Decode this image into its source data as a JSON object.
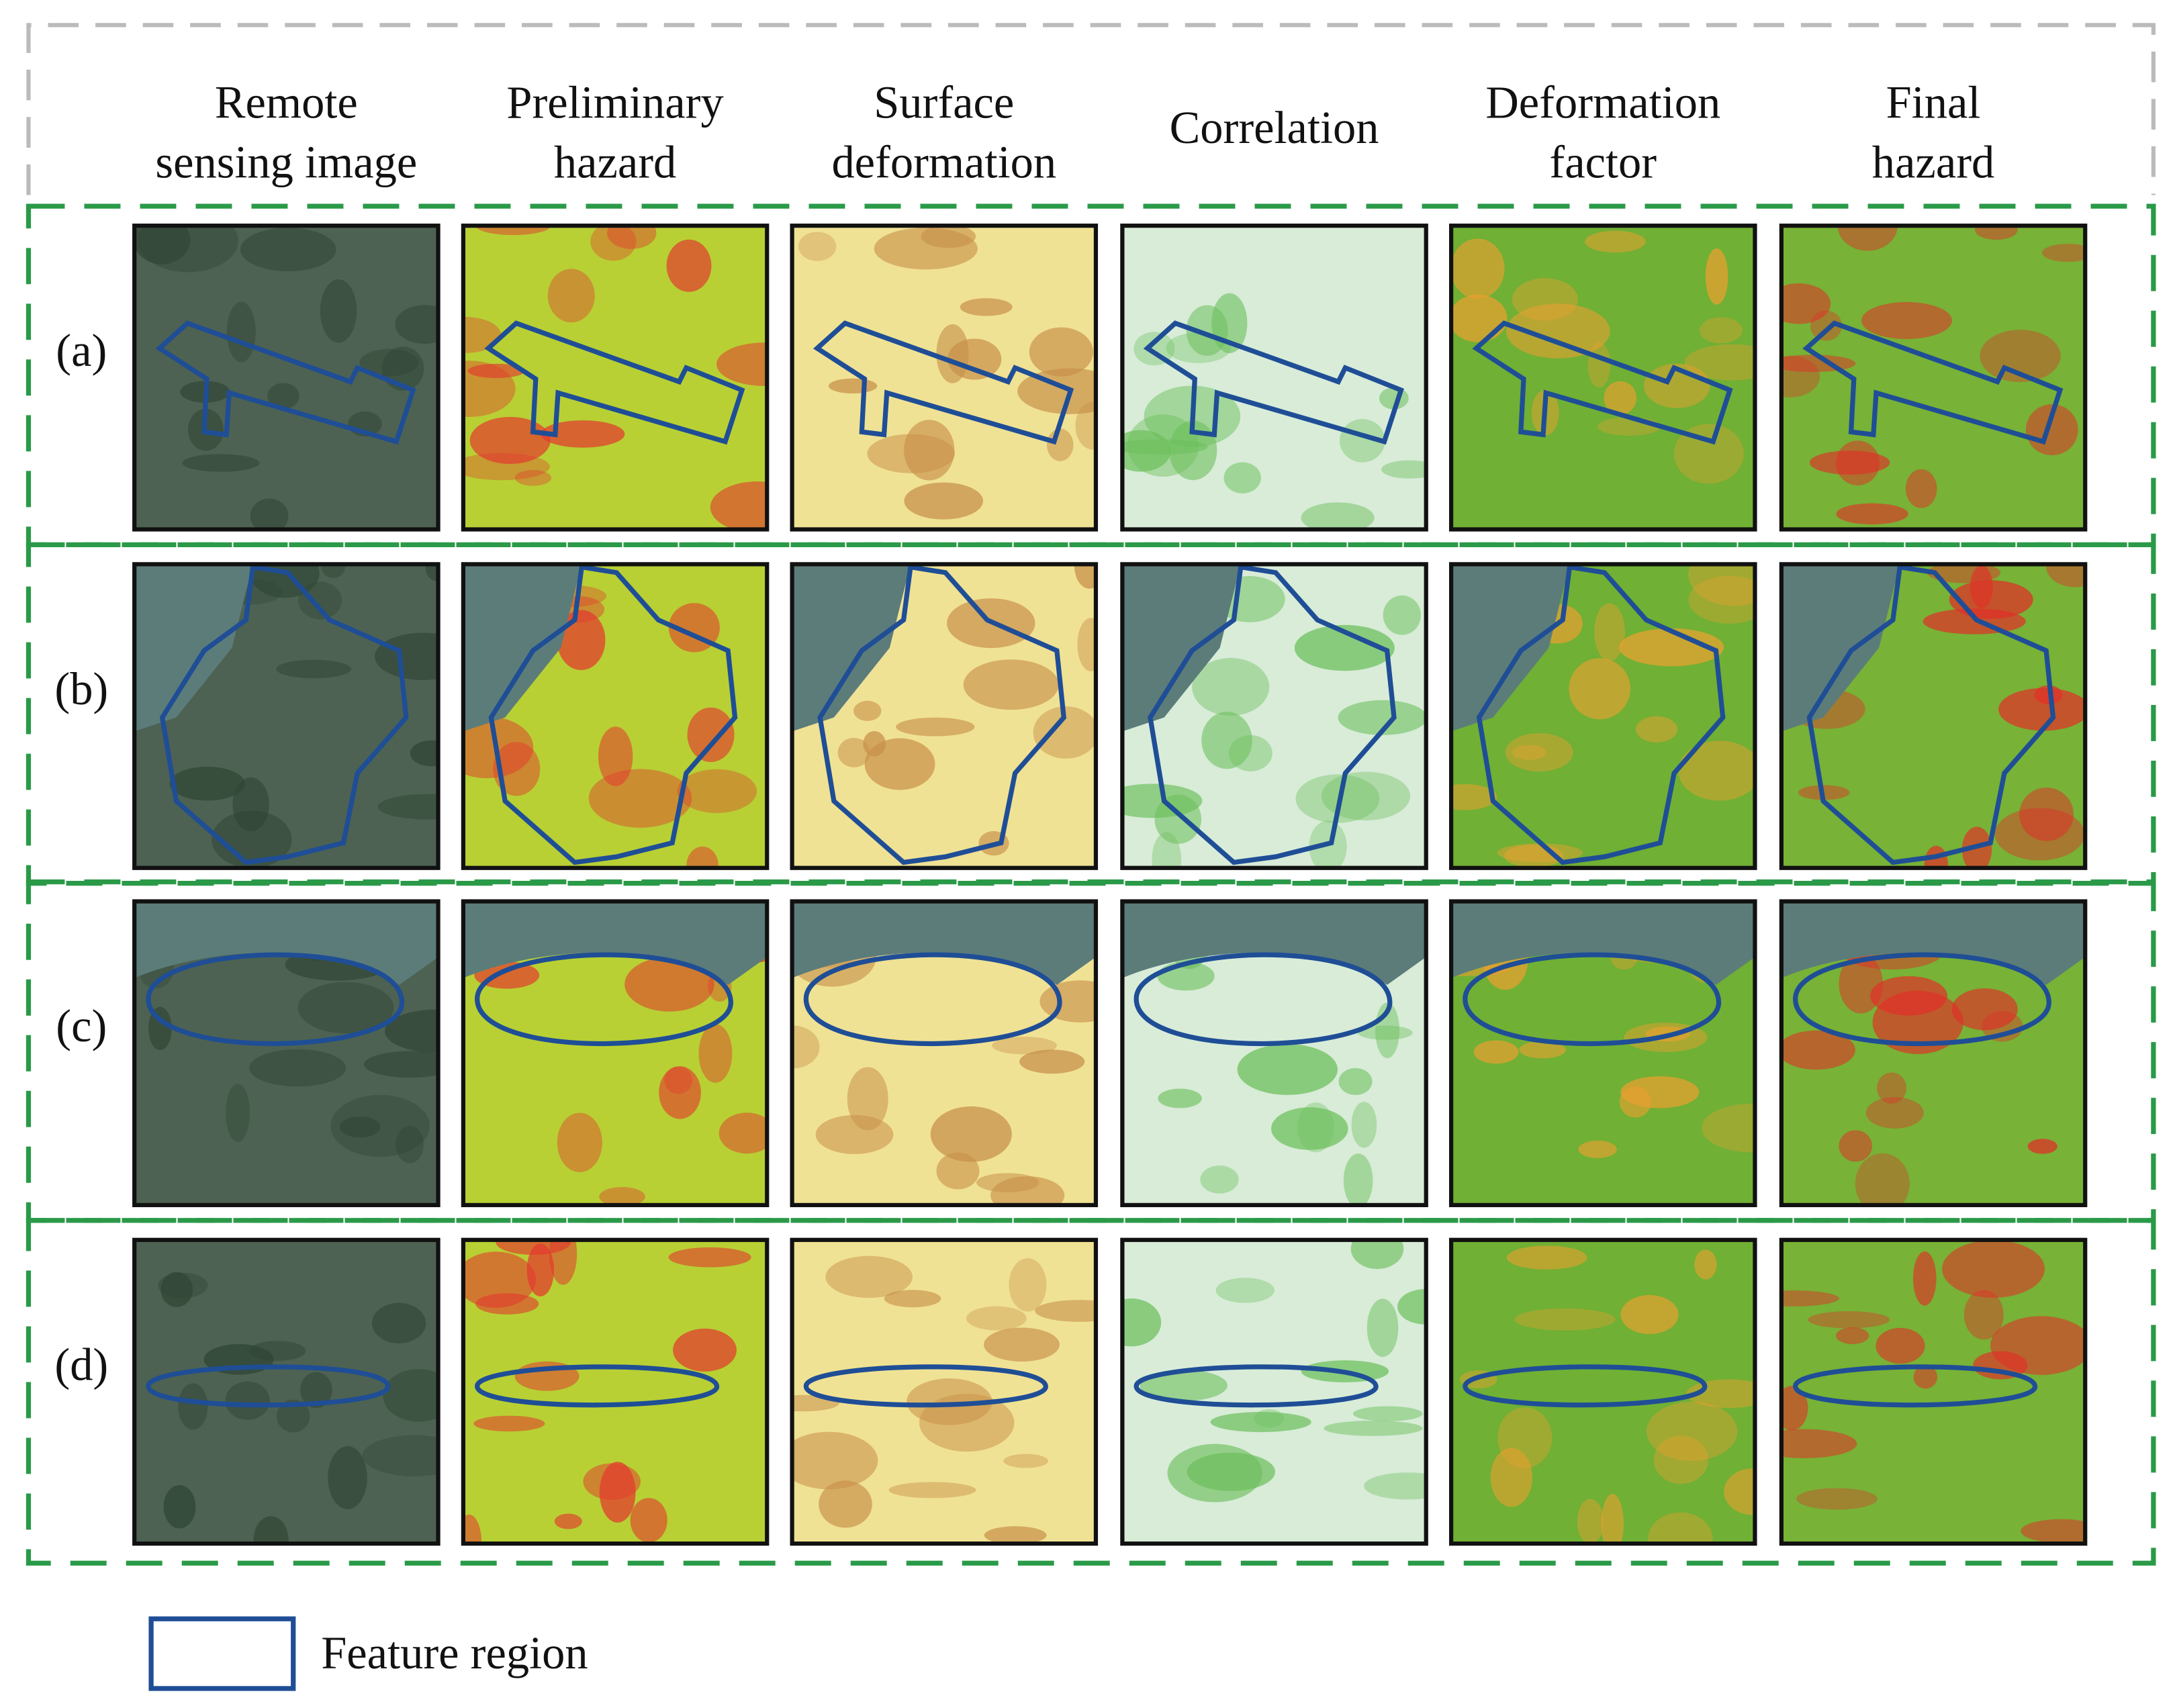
{
  "columns": [
    [
      "Remote",
      "sensing image"
    ],
    [
      "Preliminary",
      "hazard"
    ],
    [
      "Surface",
      "deformation"
    ],
    [
      "Correlation"
    ],
    [
      "Deformation",
      "factor"
    ],
    [
      "Final",
      "hazard"
    ]
  ],
  "rows": [
    "(a)",
    "(b)",
    "(c)",
    "(d)"
  ],
  "legend": {
    "label": "Feature region"
  }
}
